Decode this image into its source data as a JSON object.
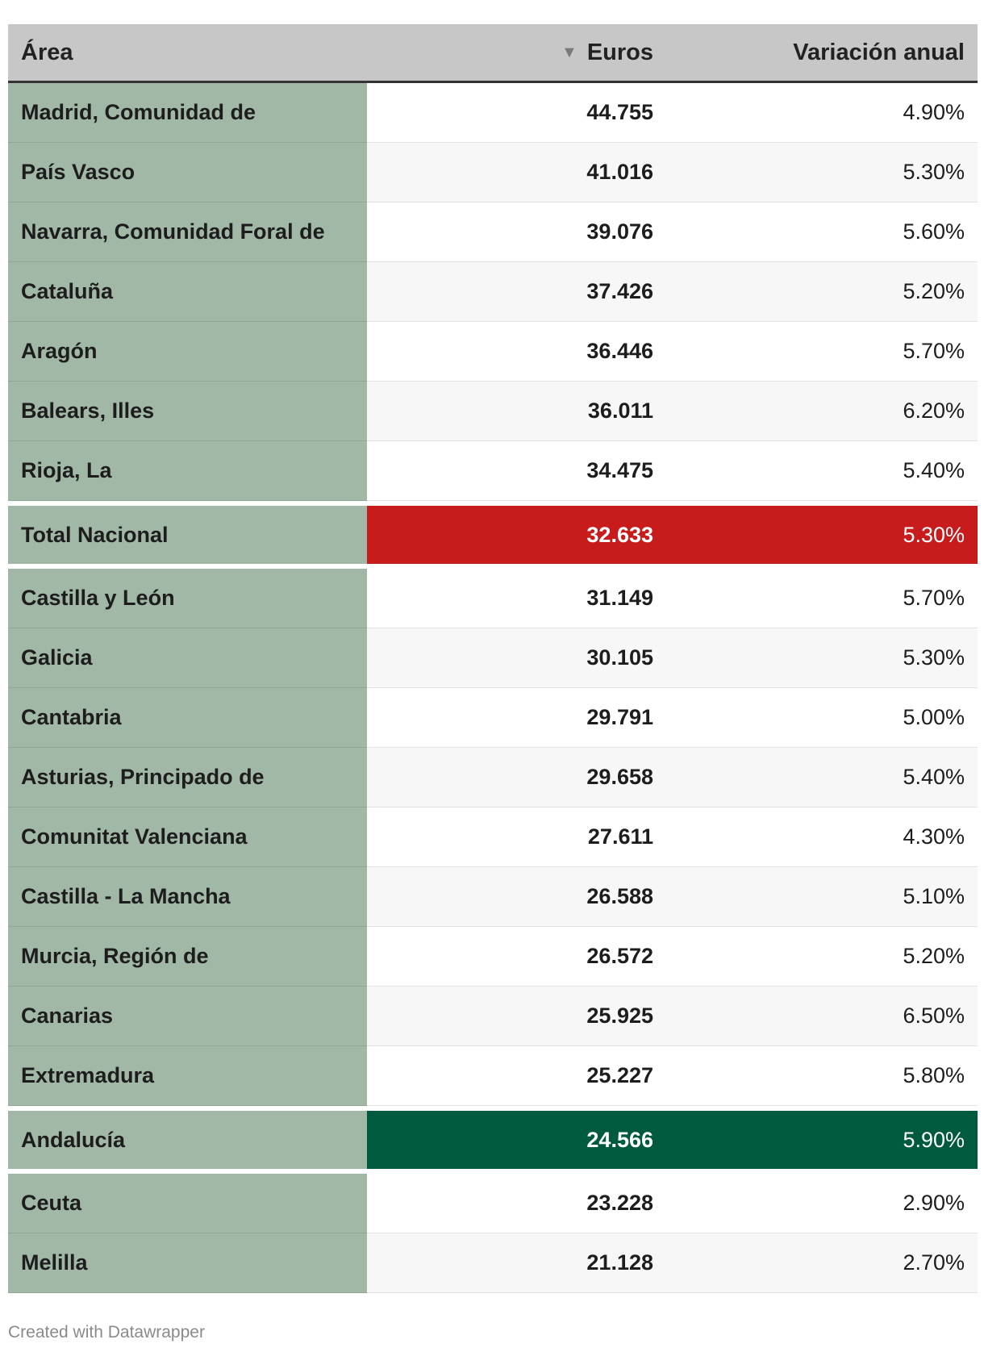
{
  "header": {
    "area": "Área",
    "euros": "Euros",
    "variacion": "Variación anual",
    "sort_icon": "sort-descending-icon"
  },
  "colors": {
    "area_column": "#a1b8a7",
    "header_bg": "#c7c7c7",
    "highlight_red": "#c81c1c",
    "highlight_green": "#005a3f"
  },
  "chart_data": {
    "type": "table",
    "columns": [
      "Área",
      "Euros",
      "Variación anual"
    ],
    "rows": [
      {
        "area": "Madrid, Comunidad de",
        "euros": "44.755",
        "variacion": "4.90%",
        "highlight": ""
      },
      {
        "area": "País Vasco",
        "euros": "41.016",
        "variacion": "5.30%",
        "highlight": ""
      },
      {
        "area": "Navarra, Comunidad Foral de",
        "euros": "39.076",
        "variacion": "5.60%",
        "highlight": ""
      },
      {
        "area": "Cataluña",
        "euros": "37.426",
        "variacion": "5.20%",
        "highlight": ""
      },
      {
        "area": "Aragón",
        "euros": "36.446",
        "variacion": "5.70%",
        "highlight": ""
      },
      {
        "area": "Balears, Illes",
        "euros": "36.011",
        "variacion": "6.20%",
        "highlight": ""
      },
      {
        "area": "Rioja, La",
        "euros": "34.475",
        "variacion": "5.40%",
        "highlight": ""
      },
      {
        "area": "Total Nacional",
        "euros": "32.633",
        "variacion": "5.30%",
        "highlight": "red"
      },
      {
        "area": "Castilla y León",
        "euros": "31.149",
        "variacion": "5.70%",
        "highlight": ""
      },
      {
        "area": "Galicia",
        "euros": "30.105",
        "variacion": "5.30%",
        "highlight": ""
      },
      {
        "area": "Cantabria",
        "euros": "29.791",
        "variacion": "5.00%",
        "highlight": ""
      },
      {
        "area": "Asturias, Principado de",
        "euros": "29.658",
        "variacion": "5.40%",
        "highlight": ""
      },
      {
        "area": "Comunitat Valenciana",
        "euros": "27.611",
        "variacion": "4.30%",
        "highlight": ""
      },
      {
        "area": "Castilla - La Mancha",
        "euros": "26.588",
        "variacion": "5.10%",
        "highlight": ""
      },
      {
        "area": "Murcia, Región de",
        "euros": "26.572",
        "variacion": "5.20%",
        "highlight": ""
      },
      {
        "area": "Canarias",
        "euros": "25.925",
        "variacion": "6.50%",
        "highlight": ""
      },
      {
        "area": "Extremadura",
        "euros": "25.227",
        "variacion": "5.80%",
        "highlight": ""
      },
      {
        "area": "Andalucía",
        "euros": "24.566",
        "variacion": "5.90%",
        "highlight": "green"
      },
      {
        "area": "Ceuta",
        "euros": "23.228",
        "variacion": "2.90%",
        "highlight": ""
      },
      {
        "area": "Melilla",
        "euros": "21.128",
        "variacion": "2.70%",
        "highlight": ""
      }
    ]
  },
  "footer": {
    "credit": "Created with Datawrapper"
  }
}
